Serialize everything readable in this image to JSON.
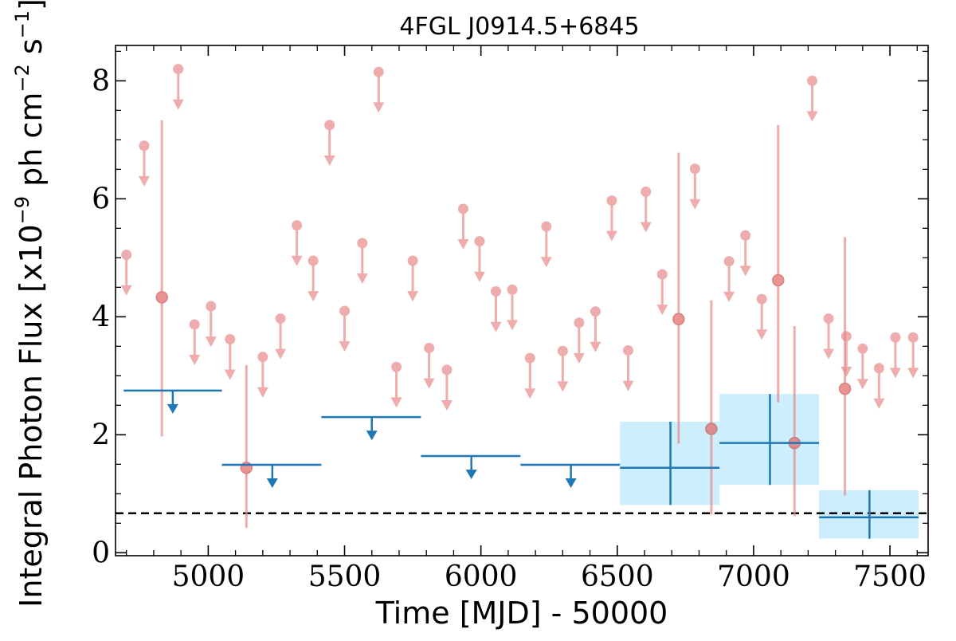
{
  "chart_data": {
    "type": "scatter",
    "title": "4FGL J0914.5+6845",
    "xlabel": "Time [MJD] - 50000",
    "ylabel_parts": {
      "main": "Integral Photon Flux [x10",
      "exp1": "−9",
      "mid": " ph cm",
      "exp2": "−2",
      "mid2": " s",
      "exp3": "−1",
      "end": "]"
    },
    "xlim": [
      4660,
      7640
    ],
    "ylim": [
      -0.05,
      8.6
    ],
    "xticks": [
      5000,
      5500,
      6000,
      6500,
      7000,
      7500
    ],
    "yticks": [
      0,
      2,
      4,
      6,
      8
    ],
    "x_tick_labels": [
      "5000",
      "5500",
      "6000",
      "6500",
      "7000",
      "7500"
    ],
    "y_tick_labels": [
      "0",
      "2",
      "4",
      "6",
      "8"
    ],
    "reference_line": {
      "y": 0.67,
      "style": "dashed"
    },
    "colors": {
      "fine": "#e88a8a",
      "coarse": "#1f77b4",
      "band": "#cdeefc",
      "refline": "#000000"
    },
    "fine_upper_limits": [
      {
        "x": 4700,
        "y": 5.05
      },
      {
        "x": 4765,
        "y": 6.9
      },
      {
        "x": 4890,
        "y": 8.2
      },
      {
        "x": 4950,
        "y": 3.87
      },
      {
        "x": 5010,
        "y": 4.18
      },
      {
        "x": 5080,
        "y": 3.62
      },
      {
        "x": 5200,
        "y": 3.32
      },
      {
        "x": 5265,
        "y": 3.97
      },
      {
        "x": 5325,
        "y": 5.55
      },
      {
        "x": 5385,
        "y": 4.95
      },
      {
        "x": 5445,
        "y": 7.25
      },
      {
        "x": 5500,
        "y": 4.1
      },
      {
        "x": 5565,
        "y": 5.25
      },
      {
        "x": 5625,
        "y": 8.15
      },
      {
        "x": 5690,
        "y": 3.15
      },
      {
        "x": 5750,
        "y": 4.95
      },
      {
        "x": 5810,
        "y": 3.47
      },
      {
        "x": 5875,
        "y": 3.1
      },
      {
        "x": 5935,
        "y": 5.83
      },
      {
        "x": 5995,
        "y": 5.28
      },
      {
        "x": 6055,
        "y": 4.43
      },
      {
        "x": 6115,
        "y": 4.46
      },
      {
        "x": 6180,
        "y": 3.3
      },
      {
        "x": 6240,
        "y": 5.53
      },
      {
        "x": 6300,
        "y": 3.42
      },
      {
        "x": 6360,
        "y": 3.9
      },
      {
        "x": 6420,
        "y": 4.09
      },
      {
        "x": 6480,
        "y": 5.97
      },
      {
        "x": 6540,
        "y": 3.43
      },
      {
        "x": 6605,
        "y": 6.12
      },
      {
        "x": 6665,
        "y": 4.72
      },
      {
        "x": 6785,
        "y": 6.51
      },
      {
        "x": 6910,
        "y": 4.94
      },
      {
        "x": 6970,
        "y": 5.38
      },
      {
        "x": 7030,
        "y": 4.3
      },
      {
        "x": 7215,
        "y": 8.0
      },
      {
        "x": 7275,
        "y": 3.97
      },
      {
        "x": 7340,
        "y": 3.67
      },
      {
        "x": 7400,
        "y": 3.46
      },
      {
        "x": 7460,
        "y": 3.13
      },
      {
        "x": 7520,
        "y": 3.65
      },
      {
        "x": 7585,
        "y": 3.65
      }
    ],
    "fine_detections": [
      {
        "x": 4830,
        "y": 4.33,
        "ylo": 1.97,
        "yhi": 7.33
      },
      {
        "x": 5140,
        "y": 1.44,
        "ylo": 0.42,
        "yhi": 3.18
      },
      {
        "x": 6725,
        "y": 3.96,
        "ylo": 1.85,
        "yhi": 6.78
      },
      {
        "x": 6845,
        "y": 2.1,
        "ylo": 0.65,
        "yhi": 4.28
      },
      {
        "x": 7090,
        "y": 4.62,
        "ylo": 2.55,
        "yhi": 7.25
      },
      {
        "x": 7150,
        "y": 1.86,
        "ylo": 0.62,
        "yhi": 3.84
      },
      {
        "x": 7335,
        "y": 2.78,
        "ylo": 0.97,
        "yhi": 5.35
      }
    ],
    "coarse_upper_limits": [
      {
        "x": 4870,
        "xlo": 4690,
        "xhi": 5050,
        "y": 2.75
      },
      {
        "x": 5235,
        "xlo": 5050,
        "xhi": 5415,
        "y": 1.49
      },
      {
        "x": 5600,
        "xlo": 5415,
        "xhi": 5780,
        "y": 2.3
      },
      {
        "x": 5965,
        "xlo": 5780,
        "xhi": 6145,
        "y": 1.64
      },
      {
        "x": 6330,
        "xlo": 6145,
        "xhi": 6510,
        "y": 1.49
      }
    ],
    "coarse_detections": [
      {
        "x": 6695,
        "xlo": 6510,
        "xhi": 6875,
        "y": 1.44,
        "ylo": 0.81,
        "yhi": 2.22
      },
      {
        "x": 7060,
        "xlo": 6875,
        "xhi": 7240,
        "y": 1.86,
        "ylo": 1.15,
        "yhi": 2.69
      },
      {
        "x": 7425,
        "xlo": 7240,
        "xhi": 7605,
        "y": 0.6,
        "ylo": 0.24,
        "yhi": 1.06
      }
    ]
  }
}
